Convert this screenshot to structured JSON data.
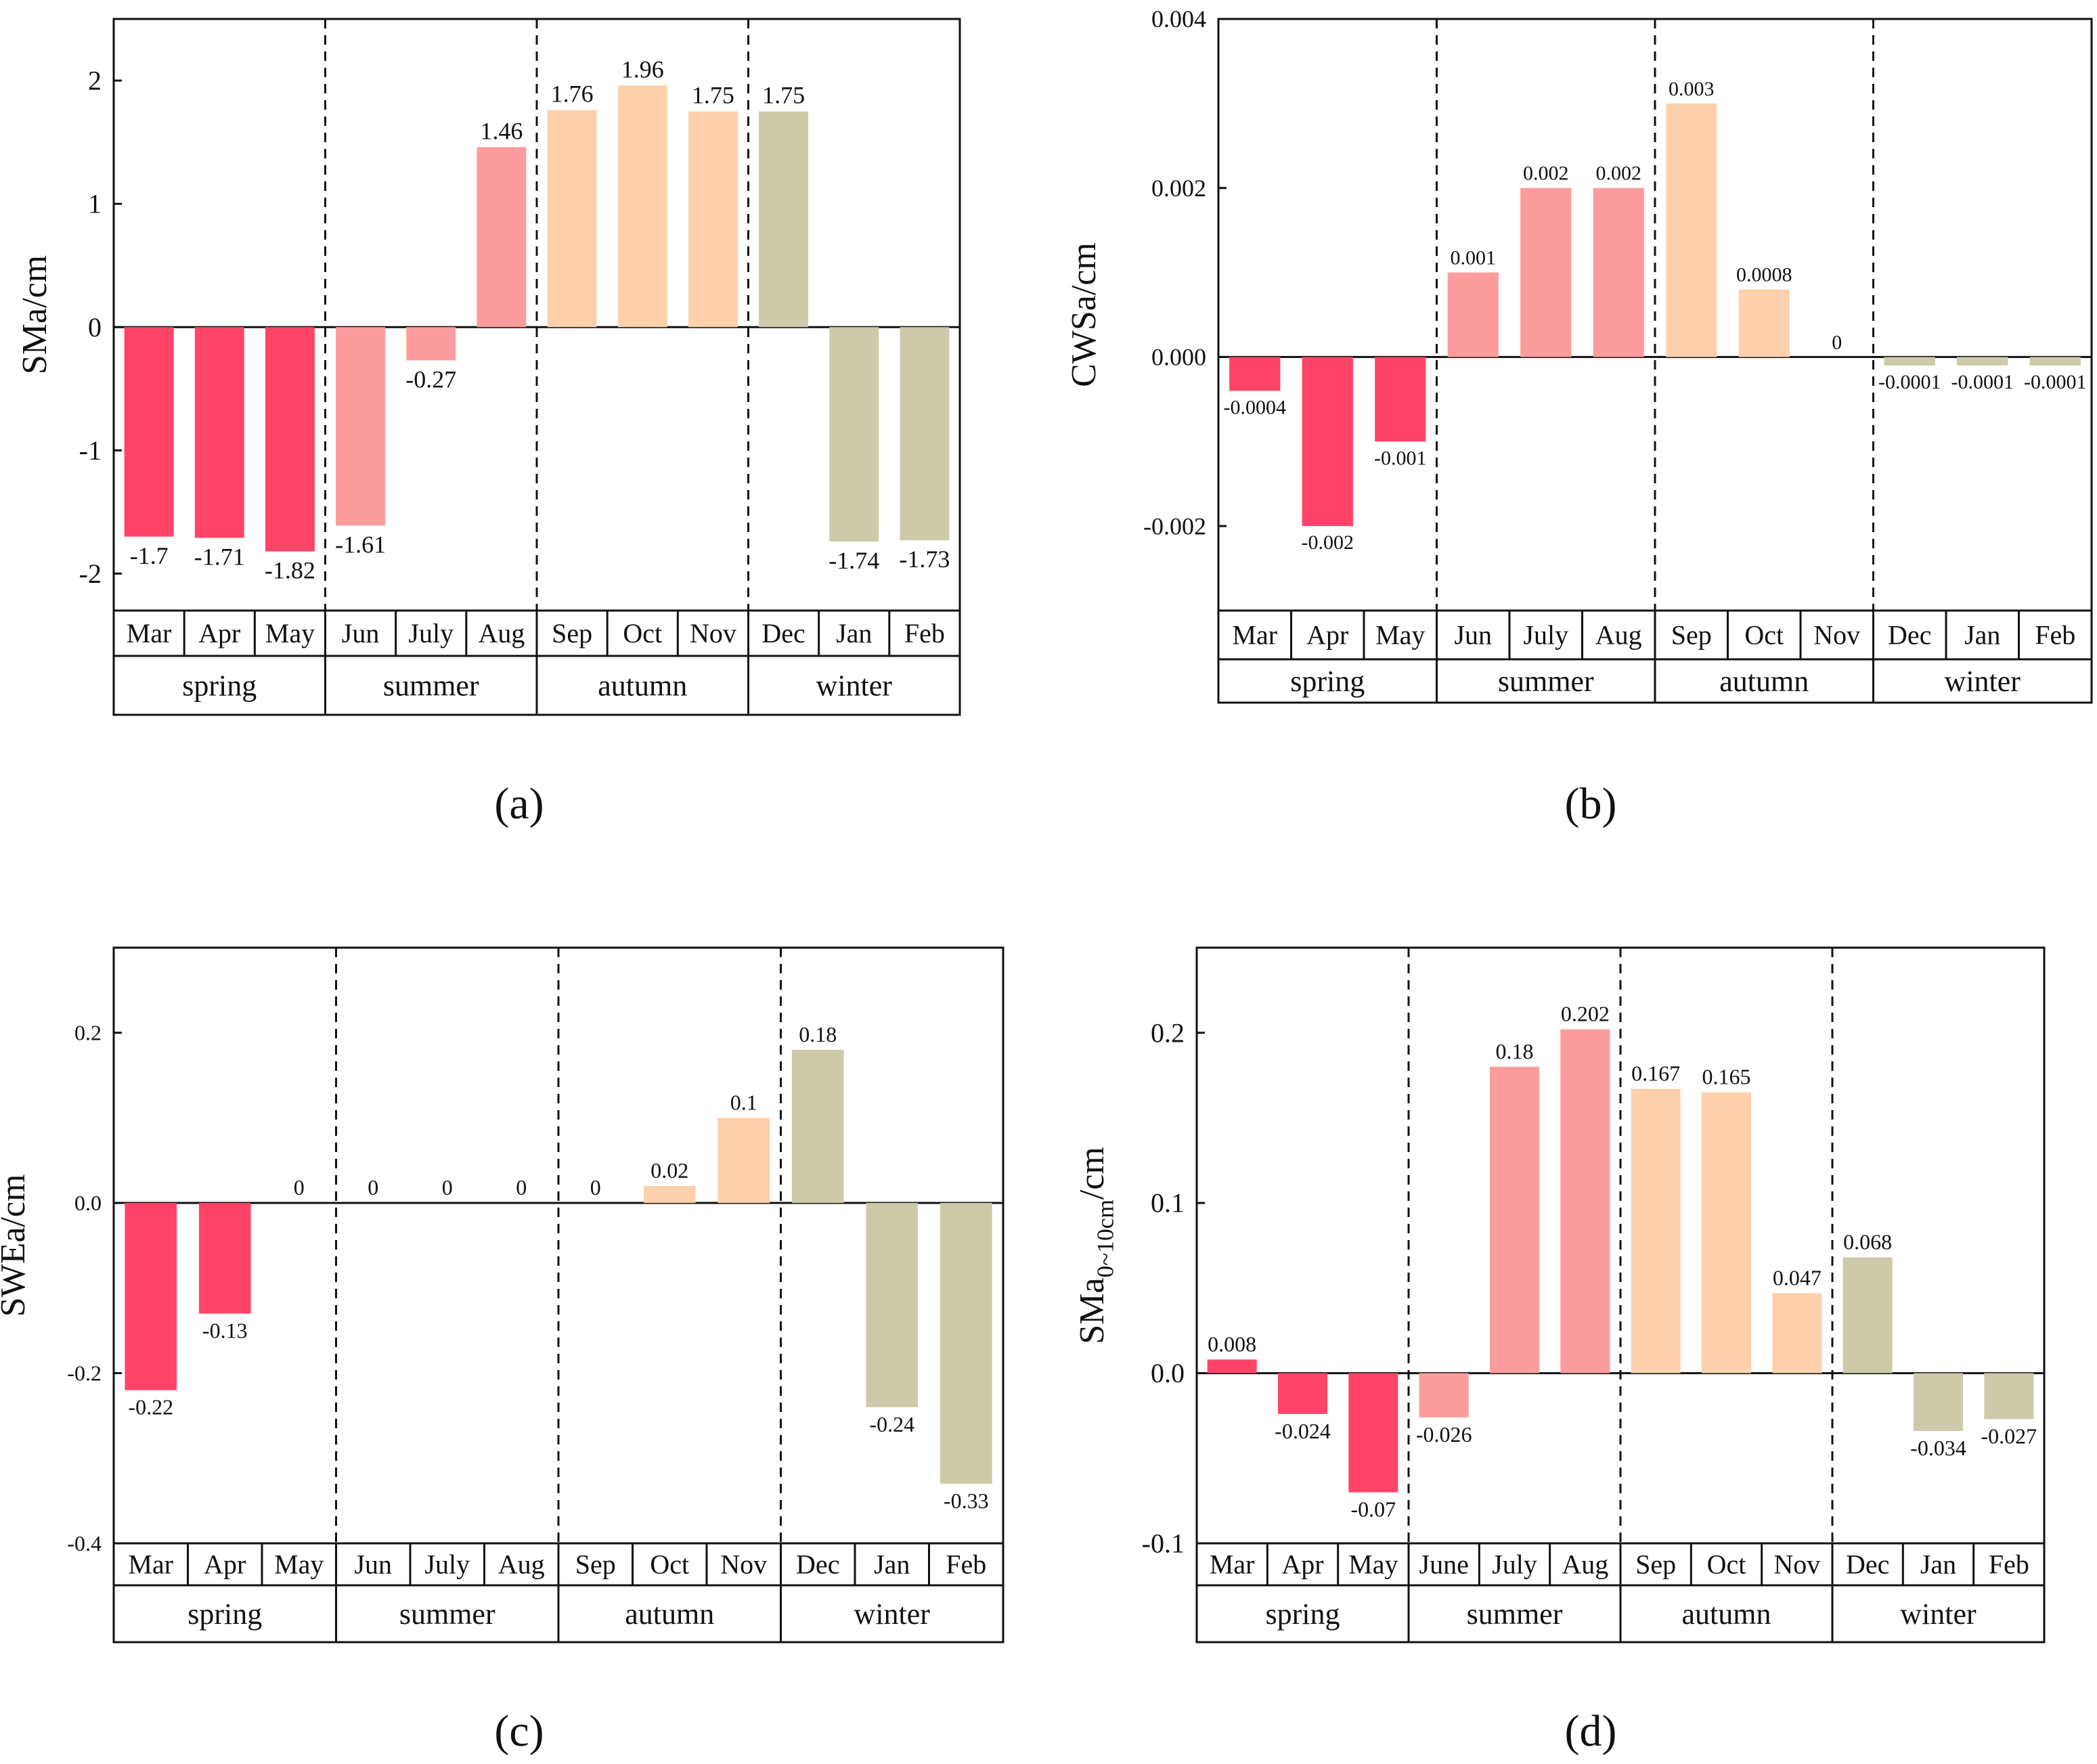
{
  "colors": {
    "spring": "#ff4468",
    "summer": "#fd9c9c",
    "autumn": "#fed0ac",
    "winter": "#cccaa8"
  },
  "chart_data": [
    {
      "type": "bar",
      "panel_label": "(a)",
      "ylabel": "SMa/cm",
      "ylim": [
        -2.3,
        2.5
      ],
      "yticks": [
        -2,
        -1,
        0,
        1,
        2
      ],
      "ytick_labels": [
        "-2",
        "-1",
        "0",
        "1",
        "2"
      ],
      "categories": [
        "Mar",
        "Apr",
        "May",
        "Jun",
        "July",
        "Aug",
        "Sep",
        "Oct",
        "Nov",
        "Dec",
        "Jan",
        "Feb"
      ],
      "values": [
        -1.7,
        -1.71,
        -1.82,
        -1.61,
        -0.27,
        1.46,
        1.76,
        1.96,
        1.75,
        1.75,
        -1.74,
        -1.73
      ],
      "value_labels": [
        "-1.7",
        "-1.71",
        "-1.82",
        "-1.61",
        "-0.27",
        "1.46",
        "1.76",
        "1.96",
        "1.75",
        "1.75",
        "-1.74",
        "-1.73"
      ],
      "seasons": [
        "spring",
        "summer",
        "autumn",
        "winter"
      ]
    },
    {
      "type": "bar",
      "panel_label": "(b)",
      "ylabel": "CWSa/cm",
      "ylim": [
        -0.003,
        0.004
      ],
      "yticks": [
        -0.002,
        0,
        0.002,
        0.004
      ],
      "ytick_labels": [
        "-0.002",
        "0.000",
        "0.002",
        "0.004"
      ],
      "categories": [
        "Mar",
        "Apr",
        "May",
        "Jun",
        "July",
        "Aug",
        "Sep",
        "Oct",
        "Nov",
        "Dec",
        "Jan",
        "Feb"
      ],
      "values": [
        -0.0004,
        -0.002,
        -0.001,
        0.001,
        0.002,
        0.002,
        0.003,
        0.0008,
        0,
        -0.0001,
        -0.0001,
        -0.0001
      ],
      "value_labels": [
        "-0.0004",
        "-0.002",
        "-0.001",
        "0.001",
        "0.002",
        "0.002",
        "0.003",
        "0.0008",
        "0",
        "-0.0001",
        "-0.0001",
        "-0.0001"
      ],
      "seasons": [
        "spring",
        "summer",
        "autumn",
        "winter"
      ]
    },
    {
      "type": "bar",
      "panel_label": "(c)",
      "ylabel": "SWEa/cm",
      "ylim": [
        -0.4,
        0.3
      ],
      "yticks": [
        -0.4,
        -0.2,
        0,
        0.2
      ],
      "ytick_labels": [
        "-0.4",
        "-0.2",
        "0.0",
        "0.2"
      ],
      "categories": [
        "Mar",
        "Apr",
        "May",
        "Jun",
        "July",
        "Aug",
        "Sep",
        "Oct",
        "Nov",
        "Dec",
        "Jan",
        "Feb"
      ],
      "values": [
        -0.22,
        -0.13,
        0,
        0,
        0,
        0,
        0,
        0.02,
        0.1,
        0.18,
        -0.24,
        -0.33
      ],
      "value_labels": [
        "-0.22",
        "-0.13",
        "0",
        "0",
        "0",
        "0",
        "0",
        "0.02",
        "0.1",
        "0.18",
        "-0.24",
        "-0.33"
      ],
      "seasons": [
        "spring",
        "summer",
        "autumn",
        "winter"
      ]
    },
    {
      "type": "bar",
      "panel_label": "(d)",
      "ylabel": "SMa",
      "ylabel_sub": "0~10cm",
      "ylabel_suffix": "/cm",
      "ylim": [
        -0.1,
        0.25
      ],
      "yticks": [
        -0.1,
        0,
        0.1,
        0.2
      ],
      "ytick_labels": [
        "-0.1",
        "0.0",
        "0.1",
        "0.2"
      ],
      "categories": [
        "Mar",
        "Apr",
        "May",
        "June",
        "July",
        "Aug",
        "Sep",
        "Oct",
        "Nov",
        "Dec",
        "Jan",
        "Feb"
      ],
      "values": [
        0.008,
        -0.024,
        -0.07,
        -0.026,
        0.18,
        0.202,
        0.167,
        0.165,
        0.047,
        0.068,
        -0.034,
        -0.027
      ],
      "value_labels": [
        "0.008",
        "-0.024",
        "-0.07",
        "-0.026",
        "0.18",
        "0.202",
        "0.167",
        "0.165",
        "0.047",
        "0.068",
        "-0.034",
        "-0.027"
      ],
      "seasons": [
        "spring",
        "summer",
        "autumn",
        "winter"
      ]
    }
  ]
}
